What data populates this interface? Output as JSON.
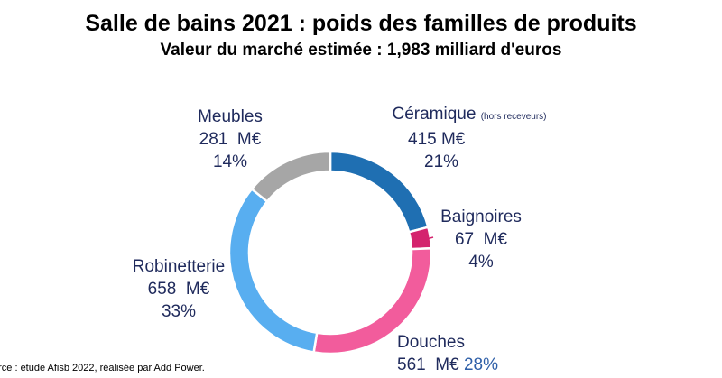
{
  "chart_data": {
    "type": "pie",
    "variant": "donut",
    "title": "Salle de bains 2021 : poids des familles de produits",
    "subtitle": "Valeur du marché estimée : 1,983 milliard d'euros",
    "unit": "M€",
    "slices": [
      {
        "name": "Céramique",
        "note": "(hors receveurs)",
        "value_label": "415 M€",
        "percent_label": "21%",
        "value": 415,
        "percent": 21,
        "color": "#1f6fb2"
      },
      {
        "name": "Baignoires",
        "value_label": "67  M€",
        "percent_label": "4%",
        "value": 67,
        "percent": 4,
        "color": "#d4246e"
      },
      {
        "name": "Douches",
        "value_label": "561  M€",
        "percent_label": "28%",
        "value": 561,
        "percent": 28,
        "color": "#f25c9c"
      },
      {
        "name": "Robinetterie",
        "value_label": "658  M€",
        "percent_label": "33%",
        "value": 658,
        "percent": 33,
        "color": "#58aef0"
      },
      {
        "name": "Meubles",
        "value_label": "281  M€",
        "percent_label": "14%",
        "value": 281,
        "percent": 14,
        "color": "#a6a6a6"
      }
    ]
  },
  "source": "urce : étude Afisb 2022, réalisée par Add Power."
}
